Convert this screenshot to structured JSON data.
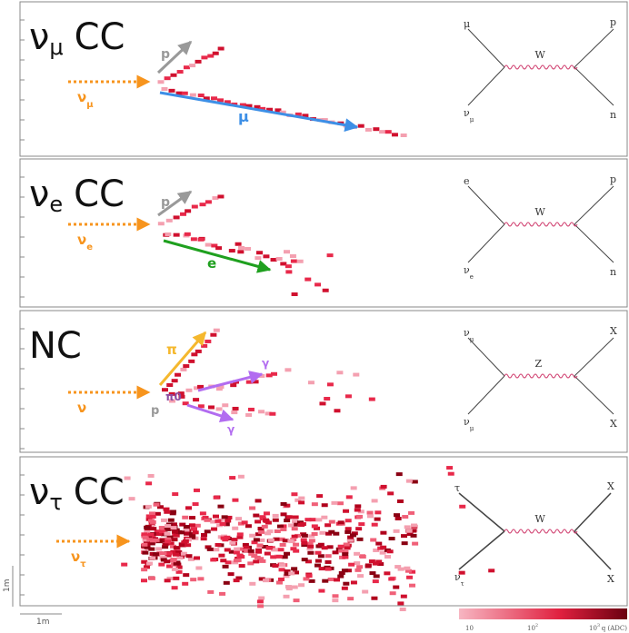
{
  "panels": [
    {
      "title": {
        "base": "ν",
        "sub": "μ",
        "rest": "CC"
      },
      "incoming": {
        "base": "ν",
        "sub": "μ"
      },
      "labels": [
        "p",
        "μ"
      ],
      "feynman": {
        "top_left": "μ",
        "bottom_left": {
          "base": "ν",
          "sub": "μ"
        },
        "boson": "W",
        "top_right": "p",
        "bottom_right": "n"
      }
    },
    {
      "title": {
        "base": "ν",
        "sub": "e",
        "rest": "CC"
      },
      "incoming": {
        "base": "ν",
        "sub": "e"
      },
      "labels": [
        "p",
        "e"
      ],
      "feynman": {
        "top_left": "e",
        "bottom_left": {
          "base": "ν",
          "sub": "e"
        },
        "boson": "W",
        "top_right": "p",
        "bottom_right": "n"
      }
    },
    {
      "title": {
        "rest": "NC"
      },
      "incoming": {
        "base": "ν"
      },
      "labels": [
        "π",
        "π0",
        "p",
        "γ",
        "γ"
      ],
      "feynman": {
        "top_left": {
          "base": "ν",
          "sub": "μ"
        },
        "bottom_left": {
          "base": "ν",
          "sub": "μ"
        },
        "boson": "Z",
        "top_right": "X",
        "bottom_right": "X"
      }
    },
    {
      "title": {
        "base": "ν",
        "sub": "τ",
        "rest": "CC"
      },
      "incoming": {
        "base": "ν",
        "sub": "τ"
      },
      "labels": [],
      "feynman": {
        "top_left": "τ",
        "bottom_left": {
          "base": "ν",
          "sub": "τ"
        },
        "boson": "W",
        "top_right": "X",
        "bottom_right": "X"
      }
    }
  ],
  "scale": {
    "vertical": "1m",
    "horizontal": "1m"
  },
  "colorbar": {
    "ticks": [
      {
        "base": "10"
      },
      {
        "base": "10",
        "sup": "2"
      },
      {
        "base": "10",
        "sup": "3"
      }
    ],
    "label": "q (ADC)"
  }
}
